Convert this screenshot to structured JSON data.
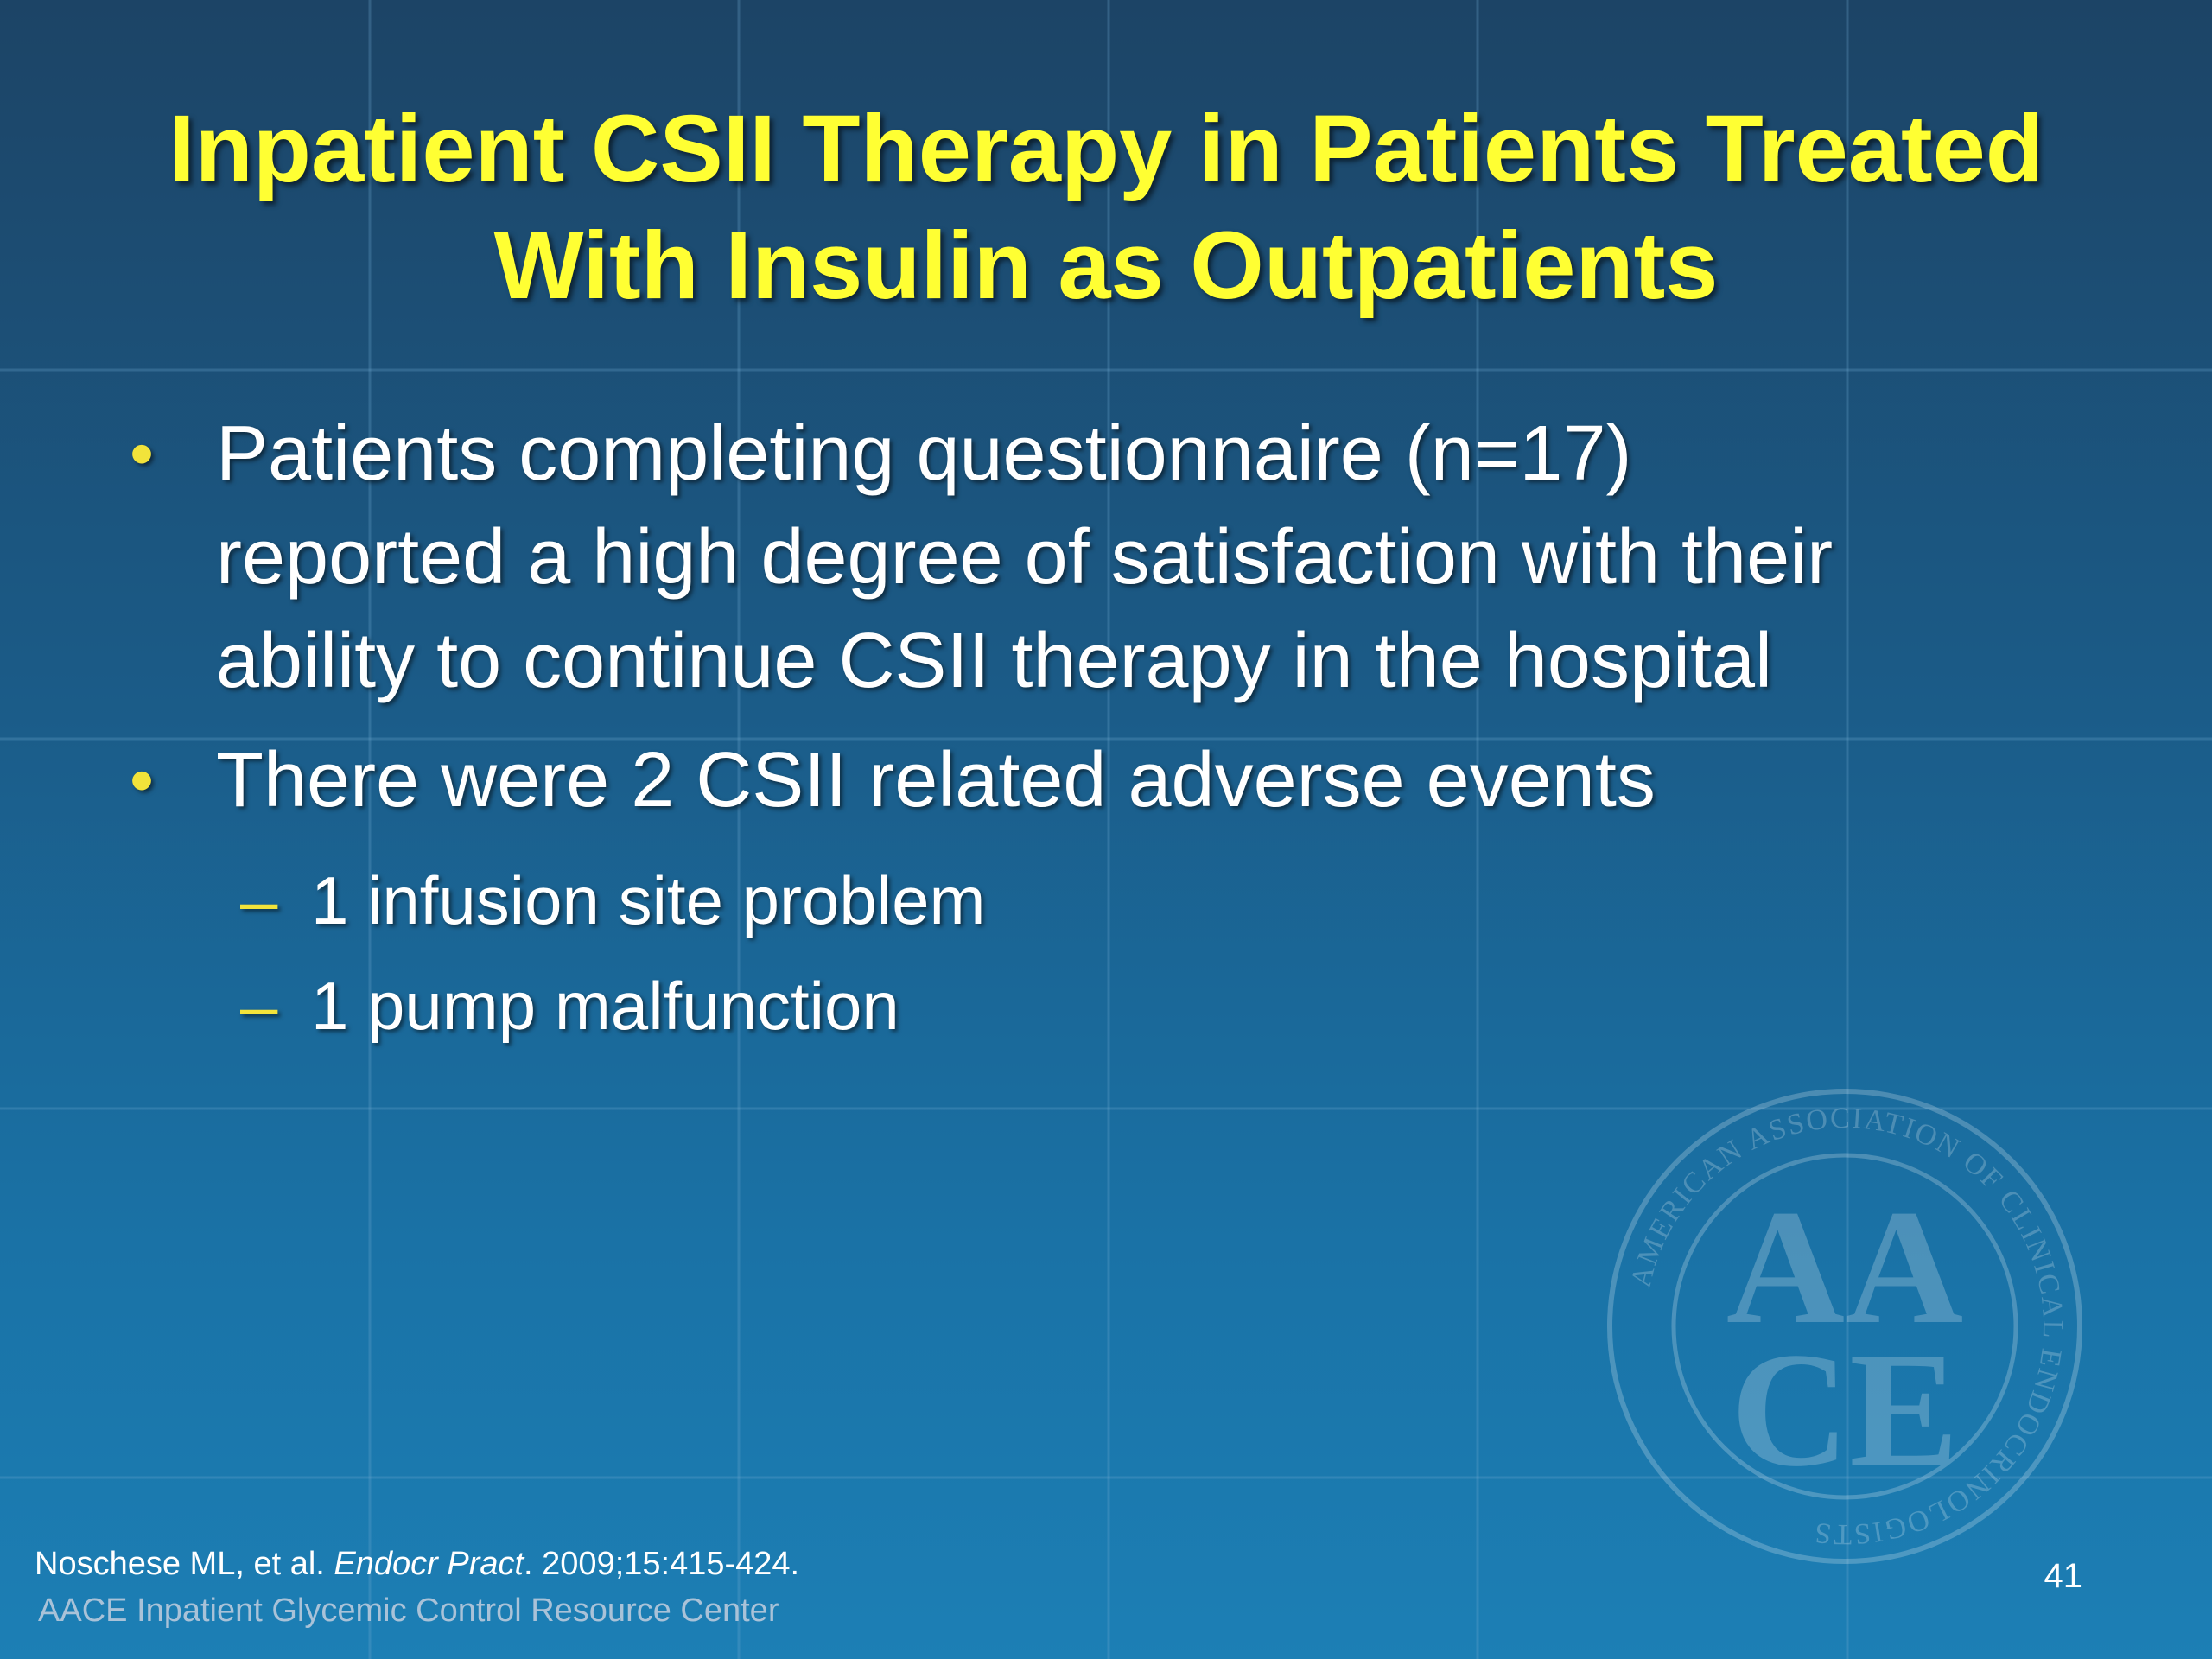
{
  "slide": {
    "title_lines": [
      "Inpatient CSII Therapy in Patients Treated",
      "With Insulin as Outpatients"
    ],
    "bullets": [
      {
        "lines": [
          "Patients completing questionnaire (n=17)",
          "reported a high degree of satisfaction with their",
          "ability to continue CSII therapy in the hospital"
        ]
      },
      {
        "lines": [
          "There were 2 CSII related adverse events"
        ],
        "subitems": [
          "1 infusion site problem",
          "1 pump malfunction"
        ]
      }
    ],
    "bullet_symbol": "•",
    "sub_symbol": "–"
  },
  "footer": {
    "citation_authors": "Noschese ML, et al.",
    "citation_journal": "Endocr Pract",
    "citation_rest": ". 2009;15:415-424.",
    "org": "AACE Inpatient Glycemic Control Resource Center",
    "page_number": "41"
  },
  "seal": {
    "ring_text": "AMERICAN ASSOCIATION OF CLINICAL ENDOCRINOLOGISTS",
    "monogram_top": "AA",
    "monogram_bottom": "CE"
  },
  "colors": {
    "title": "#ffff33",
    "bullet_marker": "#f2e33a",
    "body_text": "#ffffff",
    "org_text": "#a9c2d8"
  }
}
